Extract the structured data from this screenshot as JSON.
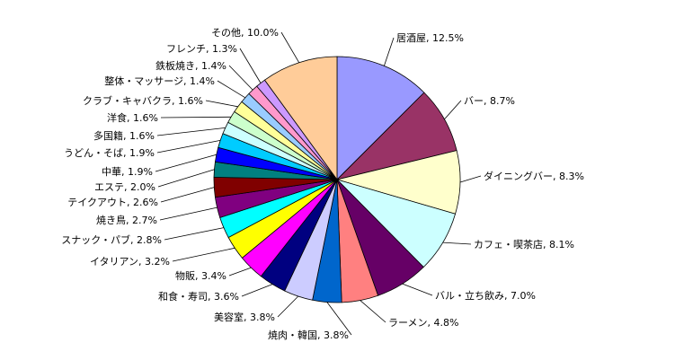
{
  "chart_data": {
    "type": "pie",
    "start_angle_deg": 0,
    "direction": "clockwise",
    "legend": "none",
    "slices": [
      {
        "label": "居酒屋",
        "value": 12.5,
        "display": "居酒屋, 12.5%",
        "color": "#9999FF"
      },
      {
        "label": "バー",
        "value": 8.7,
        "display": "バー, 8.7%",
        "color": "#993366"
      },
      {
        "label": "ダイニングバー",
        "value": 8.3,
        "display": "ダイニングバー, 8.3%",
        "color": "#FFFFCC"
      },
      {
        "label": "カフェ・喫茶店",
        "value": 8.1,
        "display": "カフェ・喫茶店, 8.1%",
        "color": "#CCFFFF"
      },
      {
        "label": "バル・立ち飲み",
        "value": 7.0,
        "display": "バル・立ち飲み, 7.0%",
        "color": "#660066"
      },
      {
        "label": "ラーメン",
        "value": 4.8,
        "display": "ラーメン, 4.8%",
        "color": "#FF8080"
      },
      {
        "label": "焼肉・韓国",
        "value": 3.8,
        "display": "焼肉・韓国, 3.8%",
        "color": "#0066CC"
      },
      {
        "label": "美容室",
        "value": 3.8,
        "display": "美容室, 3.8%",
        "color": "#CCCCFF"
      },
      {
        "label": "和食・寿司",
        "value": 3.6,
        "display": "和食・寿司, 3.6%",
        "color": "#000080"
      },
      {
        "label": "物販",
        "value": 3.4,
        "display": "物販, 3.4%",
        "color": "#FF00FF"
      },
      {
        "label": "イタリアン",
        "value": 3.2,
        "display": "イタリアン, 3.2%",
        "color": "#FFFF00"
      },
      {
        "label": "スナック・パブ",
        "value": 2.8,
        "display": "スナック・パブ, 2.8%",
        "color": "#00FFFF"
      },
      {
        "label": "焼き鳥",
        "value": 2.7,
        "display": "焼き鳥, 2.7%",
        "color": "#800080"
      },
      {
        "label": "テイクアウト",
        "value": 2.6,
        "display": "テイクアウト, 2.6%",
        "color": "#800000"
      },
      {
        "label": "エステ",
        "value": 2.0,
        "display": "エステ, 2.0%",
        "color": "#008080"
      },
      {
        "label": "中華",
        "value": 1.9,
        "display": "中華, 1.9%",
        "color": "#0000FF"
      },
      {
        "label": "うどん・そば",
        "value": 1.9,
        "display": "うどん・そば, 1.9%",
        "color": "#00CCFF"
      },
      {
        "label": "多国籍",
        "value": 1.6,
        "display": "多国籍, 1.6%",
        "color": "#CCFFFF"
      },
      {
        "label": "洋食",
        "value": 1.6,
        "display": "洋食, 1.6%",
        "color": "#CCFFCC"
      },
      {
        "label": "クラブ・キャバクラ",
        "value": 1.6,
        "display": "クラブ・キャバクラ, 1.6%",
        "color": "#FFFF99"
      },
      {
        "label": "整体・マッサージ",
        "value": 1.4,
        "display": "整体・マッサージ, 1.4%",
        "color": "#99CCFF"
      },
      {
        "label": "鉄板焼き",
        "value": 1.4,
        "display": "鉄板焼き, 1.4%",
        "color": "#FF99CC"
      },
      {
        "label": "フレンチ",
        "value": 1.3,
        "display": "フレンチ, 1.3%",
        "color": "#CC99FF"
      },
      {
        "label": "その他",
        "value": 10.0,
        "display": "その他, 10.0%",
        "color": "#FFCC99"
      }
    ]
  }
}
